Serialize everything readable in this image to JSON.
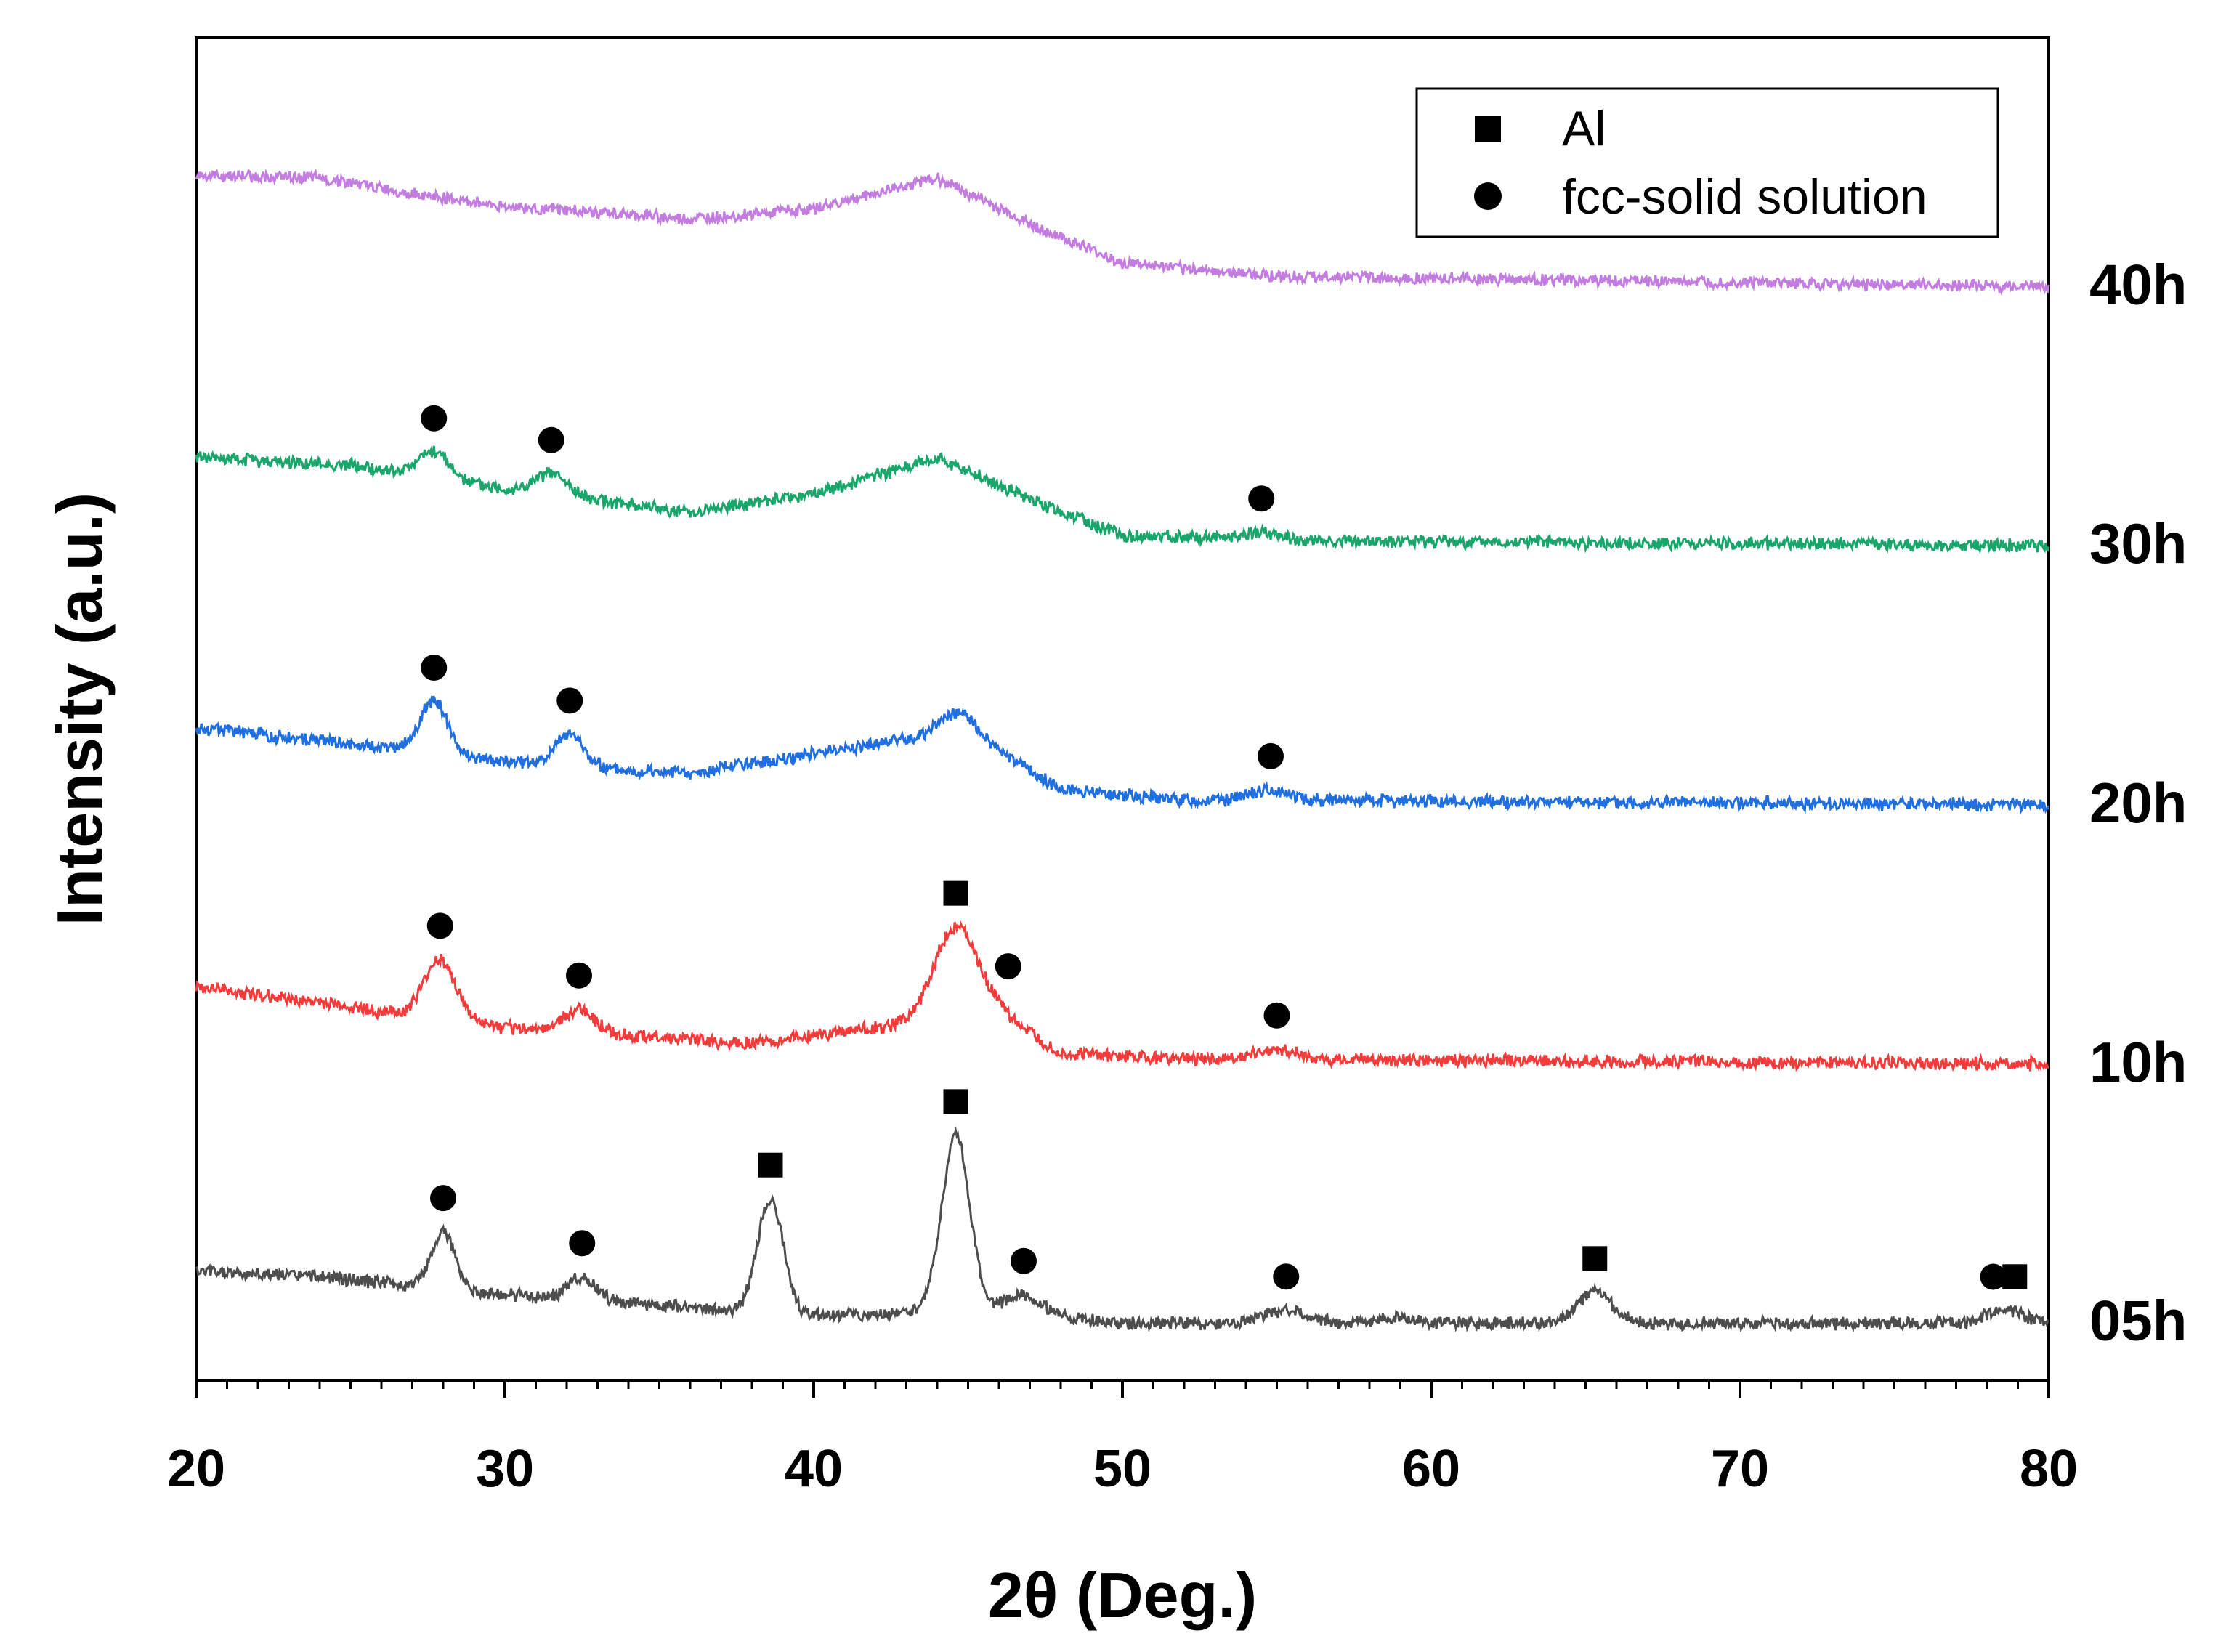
{
  "chart_data": {
    "type": "line",
    "title": "",
    "xlabel": "2θ (Deg.)",
    "ylabel": "Intensity (a.u.)",
    "xlim": [
      20,
      80
    ],
    "xticks": [
      20,
      30,
      40,
      50,
      60,
      70,
      80
    ],
    "xtick_labels": [
      "20",
      "30",
      "40",
      "50",
      "60",
      "70",
      "80"
    ],
    "yticks_visible": false,
    "grid": false,
    "legend": {
      "placement": "top-right",
      "entries": [
        {
          "marker": "square",
          "label": "Al"
        },
        {
          "marker": "circle",
          "label": "fcc-solid solution"
        }
      ]
    },
    "series": [
      {
        "name": "05h",
        "color": "#4d4d4d",
        "offset": 0,
        "noise": 0.22,
        "seed": 5,
        "baseline": [
          [
            20,
            2.0
          ],
          [
            24,
            1.8
          ],
          [
            30,
            1.1
          ],
          [
            36,
            0.6
          ],
          [
            40,
            0.3
          ],
          [
            46,
            0.5
          ],
          [
            50,
            0.0
          ],
          [
            80,
            0.0
          ]
        ],
        "peaks": [
          [
            28.0,
            2.2,
            0.38
          ],
          [
            32.5,
            0.9,
            0.45
          ],
          [
            38.6,
            4.4,
            0.42
          ],
          [
            44.6,
            6.8,
            0.45
          ],
          [
            46.8,
            0.7,
            0.55
          ],
          [
            55.3,
            0.5,
            0.7
          ],
          [
            58.8,
            0.2,
            0.6
          ],
          [
            65.3,
            1.2,
            0.55
          ],
          [
            78.6,
            0.5,
            0.6
          ]
        ],
        "markers": [
          {
            "x": 28.0,
            "type": "circle"
          },
          {
            "x": 32.5,
            "type": "circle"
          },
          {
            "x": 38.6,
            "type": "square"
          },
          {
            "x": 44.6,
            "type": "square"
          },
          {
            "x": 46.8,
            "type": "circle"
          },
          {
            "x": 55.3,
            "type": "circle"
          },
          {
            "x": 65.3,
            "type": "square"
          },
          {
            "x": 78.2,
            "type": "circle"
          },
          {
            "x": 78.9,
            "type": "square"
          }
        ]
      },
      {
        "name": "10h",
        "color": "#f23b3b",
        "offset": 10,
        "noise": 0.22,
        "seed": 10,
        "baseline": [
          [
            20,
            3.0
          ],
          [
            30,
            1.4
          ],
          [
            38,
            0.8
          ],
          [
            42,
            1.4
          ],
          [
            46,
            2.0
          ],
          [
            48,
            0.4
          ],
          [
            52,
            0.2
          ],
          [
            80,
            0.0
          ]
        ],
        "peaks": [
          [
            27.9,
            2.3,
            0.5
          ],
          [
            32.4,
            0.9,
            0.5
          ],
          [
            44.6,
            3.5,
            0.7
          ],
          [
            55.0,
            0.4,
            0.6
          ]
        ],
        "markers": [
          {
            "x": 27.9,
            "type": "circle"
          },
          {
            "x": 32.4,
            "type": "circle"
          },
          {
            "x": 44.6,
            "type": "square"
          },
          {
            "x": 46.3,
            "type": "circle"
          },
          {
            "x": 55.0,
            "type": "circle"
          }
        ]
      },
      {
        "name": "20h",
        "color": "#1f6fe0",
        "offset": 20,
        "noise": 0.22,
        "seed": 20,
        "baseline": [
          [
            20,
            3.0
          ],
          [
            30,
            1.7
          ],
          [
            36,
            1.2
          ],
          [
            41,
            2.2
          ],
          [
            45,
            2.8
          ],
          [
            48,
            0.6
          ],
          [
            52,
            0.2
          ],
          [
            80,
            0.0
          ]
        ],
        "peaks": [
          [
            27.7,
            2.0,
            0.45
          ],
          [
            32.1,
            1.2,
            0.45
          ],
          [
            44.6,
            0.8,
            0.6
          ],
          [
            54.8,
            0.4,
            0.6
          ]
        ],
        "markers": [
          {
            "x": 27.7,
            "type": "circle"
          },
          {
            "x": 32.1,
            "type": "circle"
          },
          {
            "x": 54.8,
            "type": "circle"
          }
        ]
      },
      {
        "name": "30h",
        "color": "#1aa66b",
        "offset": 30,
        "noise": 0.22,
        "seed": 30,
        "baseline": [
          [
            20,
            3.4
          ],
          [
            25,
            3.1
          ],
          [
            30,
            2.2
          ],
          [
            36,
            1.3
          ],
          [
            40,
            2.0
          ],
          [
            44,
            3.4
          ],
          [
            47,
            1.8
          ],
          [
            50,
            0.4
          ],
          [
            55,
            0.2
          ],
          [
            80,
            0.0
          ]
        ],
        "peaks": [
          [
            27.7,
            1.0,
            0.5
          ],
          [
            31.5,
            0.8,
            0.5
          ],
          [
            54.5,
            0.3,
            0.6
          ]
        ],
        "markers": [
          {
            "x": 27.7,
            "type": "circle"
          },
          {
            "x": 31.5,
            "type": "circle"
          },
          {
            "x": 54.5,
            "type": "circle"
          }
        ]
      },
      {
        "name": "40h",
        "color": "#c37de0",
        "offset": 40,
        "noise": 0.2,
        "seed": 40,
        "baseline": [
          [
            20,
            4.3
          ],
          [
            24,
            4.2
          ],
          [
            27,
            3.6
          ],
          [
            30,
            3.1
          ],
          [
            36,
            2.6
          ],
          [
            40,
            3.0
          ],
          [
            44,
            4.2
          ],
          [
            47,
            2.4
          ],
          [
            50,
            0.9
          ],
          [
            55,
            0.4
          ],
          [
            80,
            0.0
          ]
        ],
        "peaks": [],
        "markers": []
      }
    ]
  }
}
